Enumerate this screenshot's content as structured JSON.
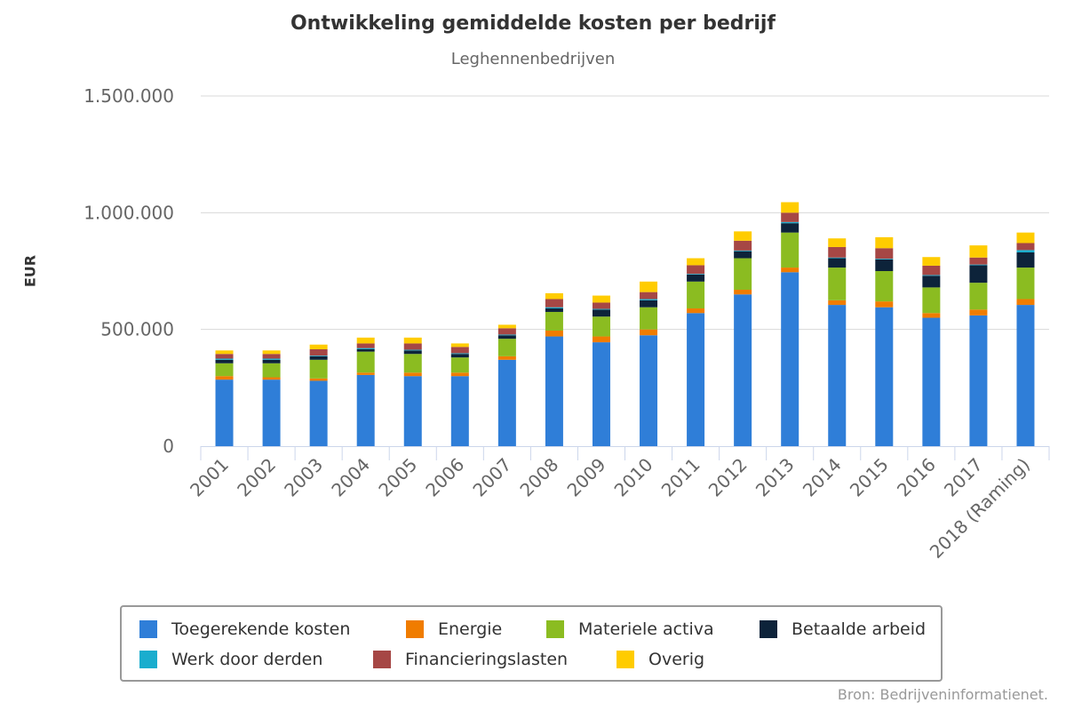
{
  "chart_data": {
    "type": "bar",
    "stacked": true,
    "title": "Ontwikkeling gemiddelde kosten per bedrijf",
    "subtitle": "Leghennenbedrijven",
    "ylabel": "EUR",
    "ylim": [
      0,
      1500000
    ],
    "yticks": [
      {
        "value": 0,
        "label": "0"
      },
      {
        "value": 500000,
        "label": "500.000"
      },
      {
        "value": 1000000,
        "label": "1.000.000"
      },
      {
        "value": 1500000,
        "label": "1.500.000"
      }
    ],
    "grid": true,
    "legend_position": "bottom",
    "categories": [
      "2001",
      "2002",
      "2003",
      "2004",
      "2005",
      "2006",
      "2007",
      "2008",
      "2009",
      "2010",
      "2011",
      "2012",
      "2013",
      "2014",
      "2015",
      "2016",
      "2017",
      "2018 (Raming)"
    ],
    "series": [
      {
        "name": "Toegerekende kosten",
        "color": "#2f7ed8",
        "values": [
          285000,
          285000,
          280000,
          305000,
          300000,
          300000,
          370000,
          470000,
          445000,
          475000,
          570000,
          650000,
          745000,
          605000,
          595000,
          550000,
          560000,
          605000
        ]
      },
      {
        "name": "Energie",
        "color": "#f07c00",
        "values": [
          15000,
          10000,
          10000,
          10000,
          15000,
          15000,
          15000,
          25000,
          25000,
          25000,
          20000,
          20000,
          20000,
          20000,
          25000,
          20000,
          25000,
          25000
        ]
      },
      {
        "name": "Materiele activa",
        "color": "#8bbc21",
        "values": [
          55000,
          60000,
          80000,
          90000,
          80000,
          65000,
          75000,
          80000,
          85000,
          95000,
          115000,
          135000,
          150000,
          140000,
          130000,
          110000,
          115000,
          135000
        ]
      },
      {
        "name": "Betaalde arbeid",
        "color": "#0d233a",
        "values": [
          15000,
          15000,
          15000,
          10000,
          15000,
          15000,
          15000,
          15000,
          30000,
          30000,
          30000,
          30000,
          40000,
          40000,
          50000,
          50000,
          75000,
          65000
        ]
      },
      {
        "name": "Werk door derden",
        "color": "#1aadce",
        "values": [
          5000,
          5000,
          3000,
          5000,
          3000,
          3000,
          3000,
          5000,
          3000,
          5000,
          3000,
          3000,
          5000,
          3000,
          3000,
          3000,
          3000,
          10000
        ]
      },
      {
        "name": "Financieringslasten",
        "color": "#a64745",
        "values": [
          20000,
          20000,
          27000,
          20000,
          27000,
          27000,
          27000,
          35000,
          27000,
          30000,
          37000,
          42000,
          40000,
          45000,
          45000,
          40000,
          30000,
          30000
        ]
      },
      {
        "name": "Overig",
        "color": "#ffcc00",
        "values": [
          15000,
          15000,
          20000,
          25000,
          25000,
          15000,
          15000,
          25000,
          30000,
          45000,
          30000,
          40000,
          45000,
          37000,
          47000,
          37000,
          52000,
          45000
        ]
      }
    ]
  },
  "credits": "Bron: Bedrijveninformatienet."
}
